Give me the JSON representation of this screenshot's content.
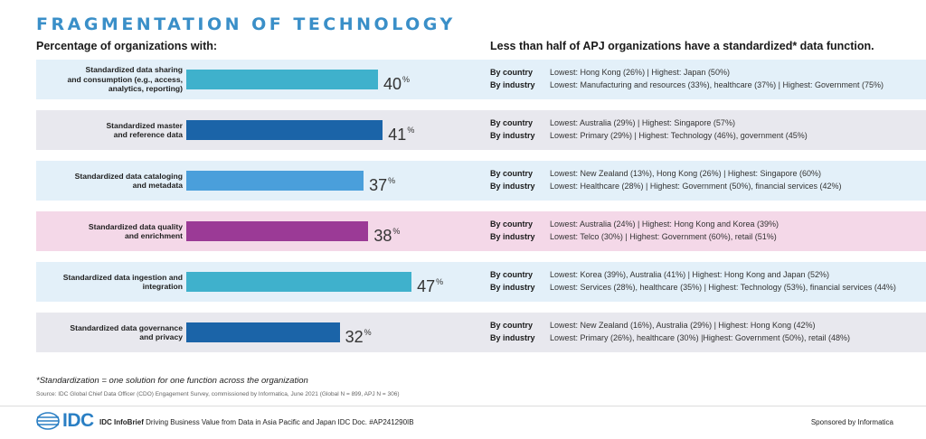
{
  "header": {
    "title": "FRAGMENTATION OF TECHNOLOGY",
    "left_subtitle": "Percentage of organizations with:",
    "right_subtitle": "Less than half of APJ organizations have a standardized* data function."
  },
  "colors": {
    "title": "#3a8fc8",
    "row_bg_blue": "#e3f0f9",
    "row_bg_gray": "#e8e8ee",
    "row_bg_pink": "#f4d8e8"
  },
  "chart_data": {
    "type": "bar",
    "orientation": "horizontal",
    "xlim": [
      0,
      100
    ],
    "value_suffix": "%",
    "rows": [
      {
        "label_lines": [
          "Standardized data sharing",
          "and consumption (e.g., access,",
          "analytics, reporting)"
        ],
        "value": 40,
        "bar_color": "#3fb1cc",
        "row_bg": "#e3f0f9",
        "by_country_label": "By country",
        "by_country": "Lowest: Hong Kong (26%) | Highest: Japan (50%)",
        "by_industry_label": "By industry",
        "by_industry": "Lowest: Manufacturing and resources (33%), healthcare (37%) | Highest: Government (75%)"
      },
      {
        "label_lines": [
          "Standardized master",
          "and reference data"
        ],
        "value": 41,
        "bar_color": "#1b64a8",
        "row_bg": "#e8e8ee",
        "by_country_label": "By country",
        "by_country": "Lowest: Australia (29%) | Highest: Singapore (57%)",
        "by_industry_label": "By industry",
        "by_industry": "Lowest: Primary (29%) | Highest: Technology (46%), government (45%)"
      },
      {
        "label_lines": [
          "Standardized data cataloging",
          "and metadata"
        ],
        "value": 37,
        "bar_color": "#4a9fdb",
        "row_bg": "#e3f0f9",
        "by_country_label": "By country",
        "by_country": "Lowest: New Zealand (13%), Hong Kong (26%) | Highest: Singapore (60%)",
        "by_industry_label": "By industry",
        "by_industry": "Lowest: Healthcare (28%) | Highest: Government (50%), financial services (42%)"
      },
      {
        "label_lines": [
          "Standardized data quality",
          "and enrichment"
        ],
        "value": 38,
        "bar_color": "#9b3a96",
        "row_bg": "#f4d8e8",
        "by_country_label": "By country",
        "by_country": "Lowest: Australia (24%) | Highest: Hong Kong and Korea (39%)",
        "by_industry_label": "By industry",
        "by_industry": "Lowest: Telco (30%) | Highest: Government (60%), retail (51%)"
      },
      {
        "label_lines": [
          "Standardized data ingestion and",
          "integration"
        ],
        "value": 47,
        "bar_color": "#3fb1cc",
        "row_bg": "#e3f0f9",
        "by_country_label": "By country",
        "by_country": "Lowest: Korea (39%), Australia (41%) | Highest: Hong Kong and Japan (52%)",
        "by_industry_label": "By industry",
        "by_industry": "Lowest: Services (28%), healthcare (35%) | Highest: Technology (53%), financial services (44%)"
      },
      {
        "label_lines": [
          "Standardized data governance",
          "and privacy"
        ],
        "value": 32,
        "bar_color": "#1b64a8",
        "row_bg": "#e8e8ee",
        "by_country_label": "By country",
        "by_country": "Lowest: New Zealand (16%), Australia (29%) | Highest: Hong Kong (42%)",
        "by_industry_label": "By industry",
        "by_industry": "Lowest: Primary (26%), healthcare (30%) |Highest: Government (50%), retail (48%)"
      }
    ]
  },
  "footer": {
    "footnote": "*Standardization = one solution for one function across the organization",
    "source": "Source: IDC Global Chief Data Officer (CDO) Engagement Survey, commissioned by Informatica, June 2021 (Global N = 899, APJ N = 306)",
    "logo_text": "IDC",
    "brief_bold": "IDC InfoBrief",
    "brief_text": "Driving Business Value from Data in Asia Pacific and Japan   IDC Doc. #AP241290IB",
    "sponsor": "Sponsored by Informatica"
  }
}
